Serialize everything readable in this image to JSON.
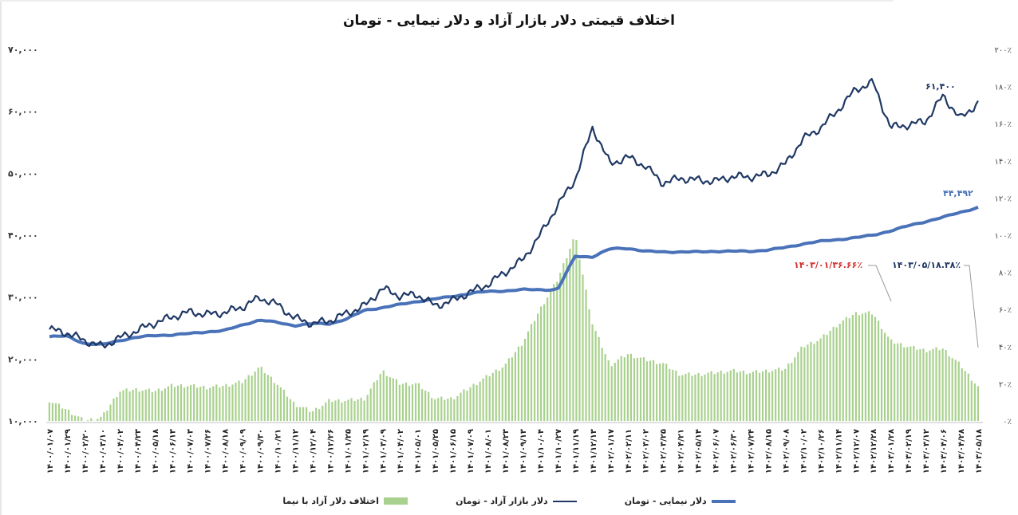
{
  "title": "اختلاف قیمتی دلار بازار آزاد و دلار نیمایی - تومان",
  "colors": {
    "free_market": "#1f3864",
    "nima": "#4a72b8",
    "diff_bars": "#a9d18e",
    "annotation_red": "#d32f2f",
    "annotation_dark": "#1f3864"
  },
  "legend": [
    {
      "label": "دلار نیمایی - تومان",
      "key": "nima"
    },
    {
      "label": "دلار بازار آزاد - تومان",
      "key": "free_market"
    },
    {
      "label": "اختلاف دلار آزاد با نیما",
      "key": "diff"
    }
  ],
  "annotations": {
    "free_last": "۶۱,۴۰۰",
    "nima_last": "۴۴,۴۹۲",
    "diff_peak": "۱۴۰۳/۰۱/۳۶.۶۶٪",
    "diff_last": "۱۴۰۳/۰۵/۱۸.۳۸٪"
  },
  "chart_data": {
    "type": "line+bar",
    "title": "اختلاف قیمتی دلار بازار آزاد و دلار نیمایی - تومان",
    "xlabel": "",
    "ylabel_left": "تومان",
    "ylabel_right": "درصد اختلاف",
    "ylim_left": [
      10000,
      70000
    ],
    "ylim_right": [
      0,
      200
    ],
    "left_ticks": [
      "۷۰,۰۰۰",
      "۶۰,۰۰۰",
      "۵۰,۰۰۰",
      "۴۰,۰۰۰",
      "۳۰,۰۰۰",
      "۲۰,۰۰۰",
      "۱۰,۰۰۰"
    ],
    "right_ticks": [
      "۲۰۰٪",
      "۱۸۰٪",
      "۱۶۰٪",
      "۱۴۰٪",
      "۱۲۰٪",
      "۱۰۰٪",
      "۸۰٪",
      "۶۰٪",
      "۴۰٪",
      "۲۰٪",
      "۰٪"
    ],
    "x_labels": [
      "۱۴۰۰/۰۱/۰۷",
      "۱۴۰۰/۰۱/۲۹",
      "۱۴۰۰/۰۲/۲۰",
      "۱۴۰۰/۰۳/۱۰",
      "۱۴۰۰/۰۴/۰۲",
      "۱۴۰۰/۰۴/۲۳",
      "۱۴۰۰/۰۵/۱۸",
      "۱۴۰۰/۰۶/۱۳",
      "۱۴۰۰/۰۷/۰۳",
      "۱۴۰۰/۰۷/۲۶",
      "۱۴۰۰/۰۸/۱۸",
      "۱۴۰۰/۰۹/۰۹",
      "۱۴۰۰/۰۹/۳۰",
      "۱۴۰۰/۱۰/۲۱",
      "۱۴۰۰/۱۱/۱۲",
      "۱۴۰۰/۱۲/۰۴",
      "۱۴۰۰/۱۲/۲۶",
      "۱۴۰۱/۰۱/۲۵",
      "۱۴۰۱/۰۲/۱۹",
      "۱۴۰۱/۰۳/۰۹",
      "۱۴۰۱/۰۴/۰۲",
      "۱۴۰۱/۰۵/۰۱",
      "۱۴۰۱/۰۵/۲۵",
      "۱۴۰۱/۰۶/۱۵",
      "۱۴۰۱/۰۷/۰۹",
      "۱۴۰۱/۰۸/۰۱",
      "۱۴۰۱/۰۸/۲۳",
      "۱۴۰۱/۰۹/۱۳",
      "۱۴۰۱/۱۰/۰۴",
      "۱۴۰۱/۱۰/۲۷",
      "۱۴۰۱/۱۱/۱۹",
      "۱۴۰۱/۱۲/۱۳",
      "۱۴۰۲/۰۱/۱۷",
      "۱۴۰۲/۰۲/۱۱",
      "۱۴۰۲/۰۳/۰۲",
      "۱۴۰۲/۰۳/۲۵",
      "۱۴۰۲/۰۴/۲۱",
      "۱۴۰۲/۰۵/۱۴",
      "۱۴۰۲/۰۶/۰۷",
      "۱۴۰۲/۰۶/۳۰",
      "۱۴۰۲/۰۷/۲۴",
      "۱۴۰۲/۰۸/۱۵",
      "۱۴۰۲/۰۹/۰۸",
      "۱۴۰۲/۱۰/۰۲",
      "۱۴۰۲/۱۰/۲۶",
      "۱۴۰۲/۱۱/۱۴",
      "۱۴۰۲/۱۲/۰۷",
      "۱۴۰۲/۱۲/۲۸",
      "۱۴۰۳/۰۱/۲۸",
      "۱۴۰۳/۰۲/۱۹",
      "۱۴۰۳/۰۳/۱۲",
      "۱۴۰۳/۰۴/۰۶",
      "۱۴۰۳/۰۴/۲۸",
      "۱۴۰۳/۰۵/۱۸"
    ],
    "series": [
      {
        "name": "دلار بازار آزاد - تومان",
        "axis": "left",
        "type": "line",
        "values": [
          24800,
          24200,
          23000,
          22000,
          23400,
          24600,
          25800,
          26800,
          27600,
          27200,
          27500,
          28400,
          29900,
          28800,
          26600,
          25700,
          26200,
          27400,
          28600,
          31400,
          30200,
          30400,
          28600,
          29400,
          30800,
          32000,
          34000,
          36000,
          40000,
          44800,
          49000,
          57400,
          51500,
          52600,
          51200,
          48400,
          49200,
          48900,
          48700,
          49500,
          49400,
          49800,
          51500,
          55500,
          57300,
          60200,
          63500,
          64700,
          57400,
          57800,
          58400,
          62500,
          58800,
          61400
        ],
        "last_value": 61400
      },
      {
        "name": "دلار نیمایی - تومان",
        "axis": "left",
        "type": "line",
        "values": [
          23600,
          23700,
          22500,
          22300,
          23000,
          23500,
          23800,
          23900,
          24100,
          24400,
          24600,
          25500,
          26300,
          25900,
          25400,
          25700,
          25700,
          26500,
          27900,
          28300,
          28800,
          29300,
          29700,
          30100,
          30600,
          30900,
          31000,
          31200,
          31200,
          31200,
          36600,
          36500,
          37800,
          37900,
          37400,
          37300,
          37300,
          37300,
          37400,
          37400,
          37400,
          37600,
          38000,
          38600,
          39000,
          39300,
          39600,
          40000,
          40700,
          41500,
          42200,
          42900,
          43700,
          44492
        ],
        "last_value": 44492
      },
      {
        "name": "اختلاف دلار آزاد با نیما",
        "axis": "right",
        "type": "bar",
        "unit": "%",
        "values": [
          11,
          6,
          0,
          2,
          16,
          17,
          16,
          19,
          19,
          18,
          19,
          21,
          29,
          20,
          9,
          5,
          11,
          11,
          12,
          27,
          20,
          20,
          12,
          12,
          18,
          24,
          30,
          42,
          60,
          76,
          100,
          52,
          30,
          36,
          33,
          31,
          25,
          25,
          26,
          27,
          26,
          27,
          28,
          40,
          44,
          52,
          58,
          58,
          43,
          40,
          38,
          39,
          30,
          18.38
        ],
        "annotations": [
          {
            "label": "۱۴۰۳/۰۱/۳۶.۶۶٪",
            "date": "۱۴۰۳/۰۱",
            "value": 36.66,
            "color": "red"
          },
          {
            "label": "۱۴۰۳/۰۵/۱۸.۳۸٪",
            "date": "۱۴۰۳/۰۵",
            "value": 18.38
          }
        ]
      }
    ],
    "grid": false,
    "legend_position": "bottom"
  }
}
